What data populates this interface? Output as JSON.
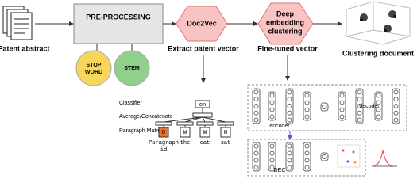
{
  "pipeline": {
    "input": {
      "label": "Patent abstract"
    },
    "preprocessing": {
      "label": "PRE-PROCESSING",
      "stopword": [
        "STOP",
        "WORD"
      ],
      "stem": "STEM"
    },
    "doc2vec": {
      "label": "Doc2Vec",
      "caption": "Extract patent vector"
    },
    "dec": {
      "label": [
        "Deep",
        "embedding",
        "clustering"
      ],
      "caption": "Fine-tuned vector"
    },
    "output": {
      "label": "Clustering document"
    }
  },
  "doc2vec_model": {
    "classifier": "Classifier",
    "average": "Average/Concatenate",
    "matrix": "Paragraph Matrix",
    "output_word": "on",
    "paragraph_token": "D",
    "paragraph_label": [
      "Paragraph",
      "id"
    ],
    "word_token": "W",
    "words": [
      "the",
      "cat",
      "sat"
    ]
  },
  "dec_model": {
    "encoder": "encoder",
    "decoder": "decoder",
    "dec": "DEC"
  }
}
